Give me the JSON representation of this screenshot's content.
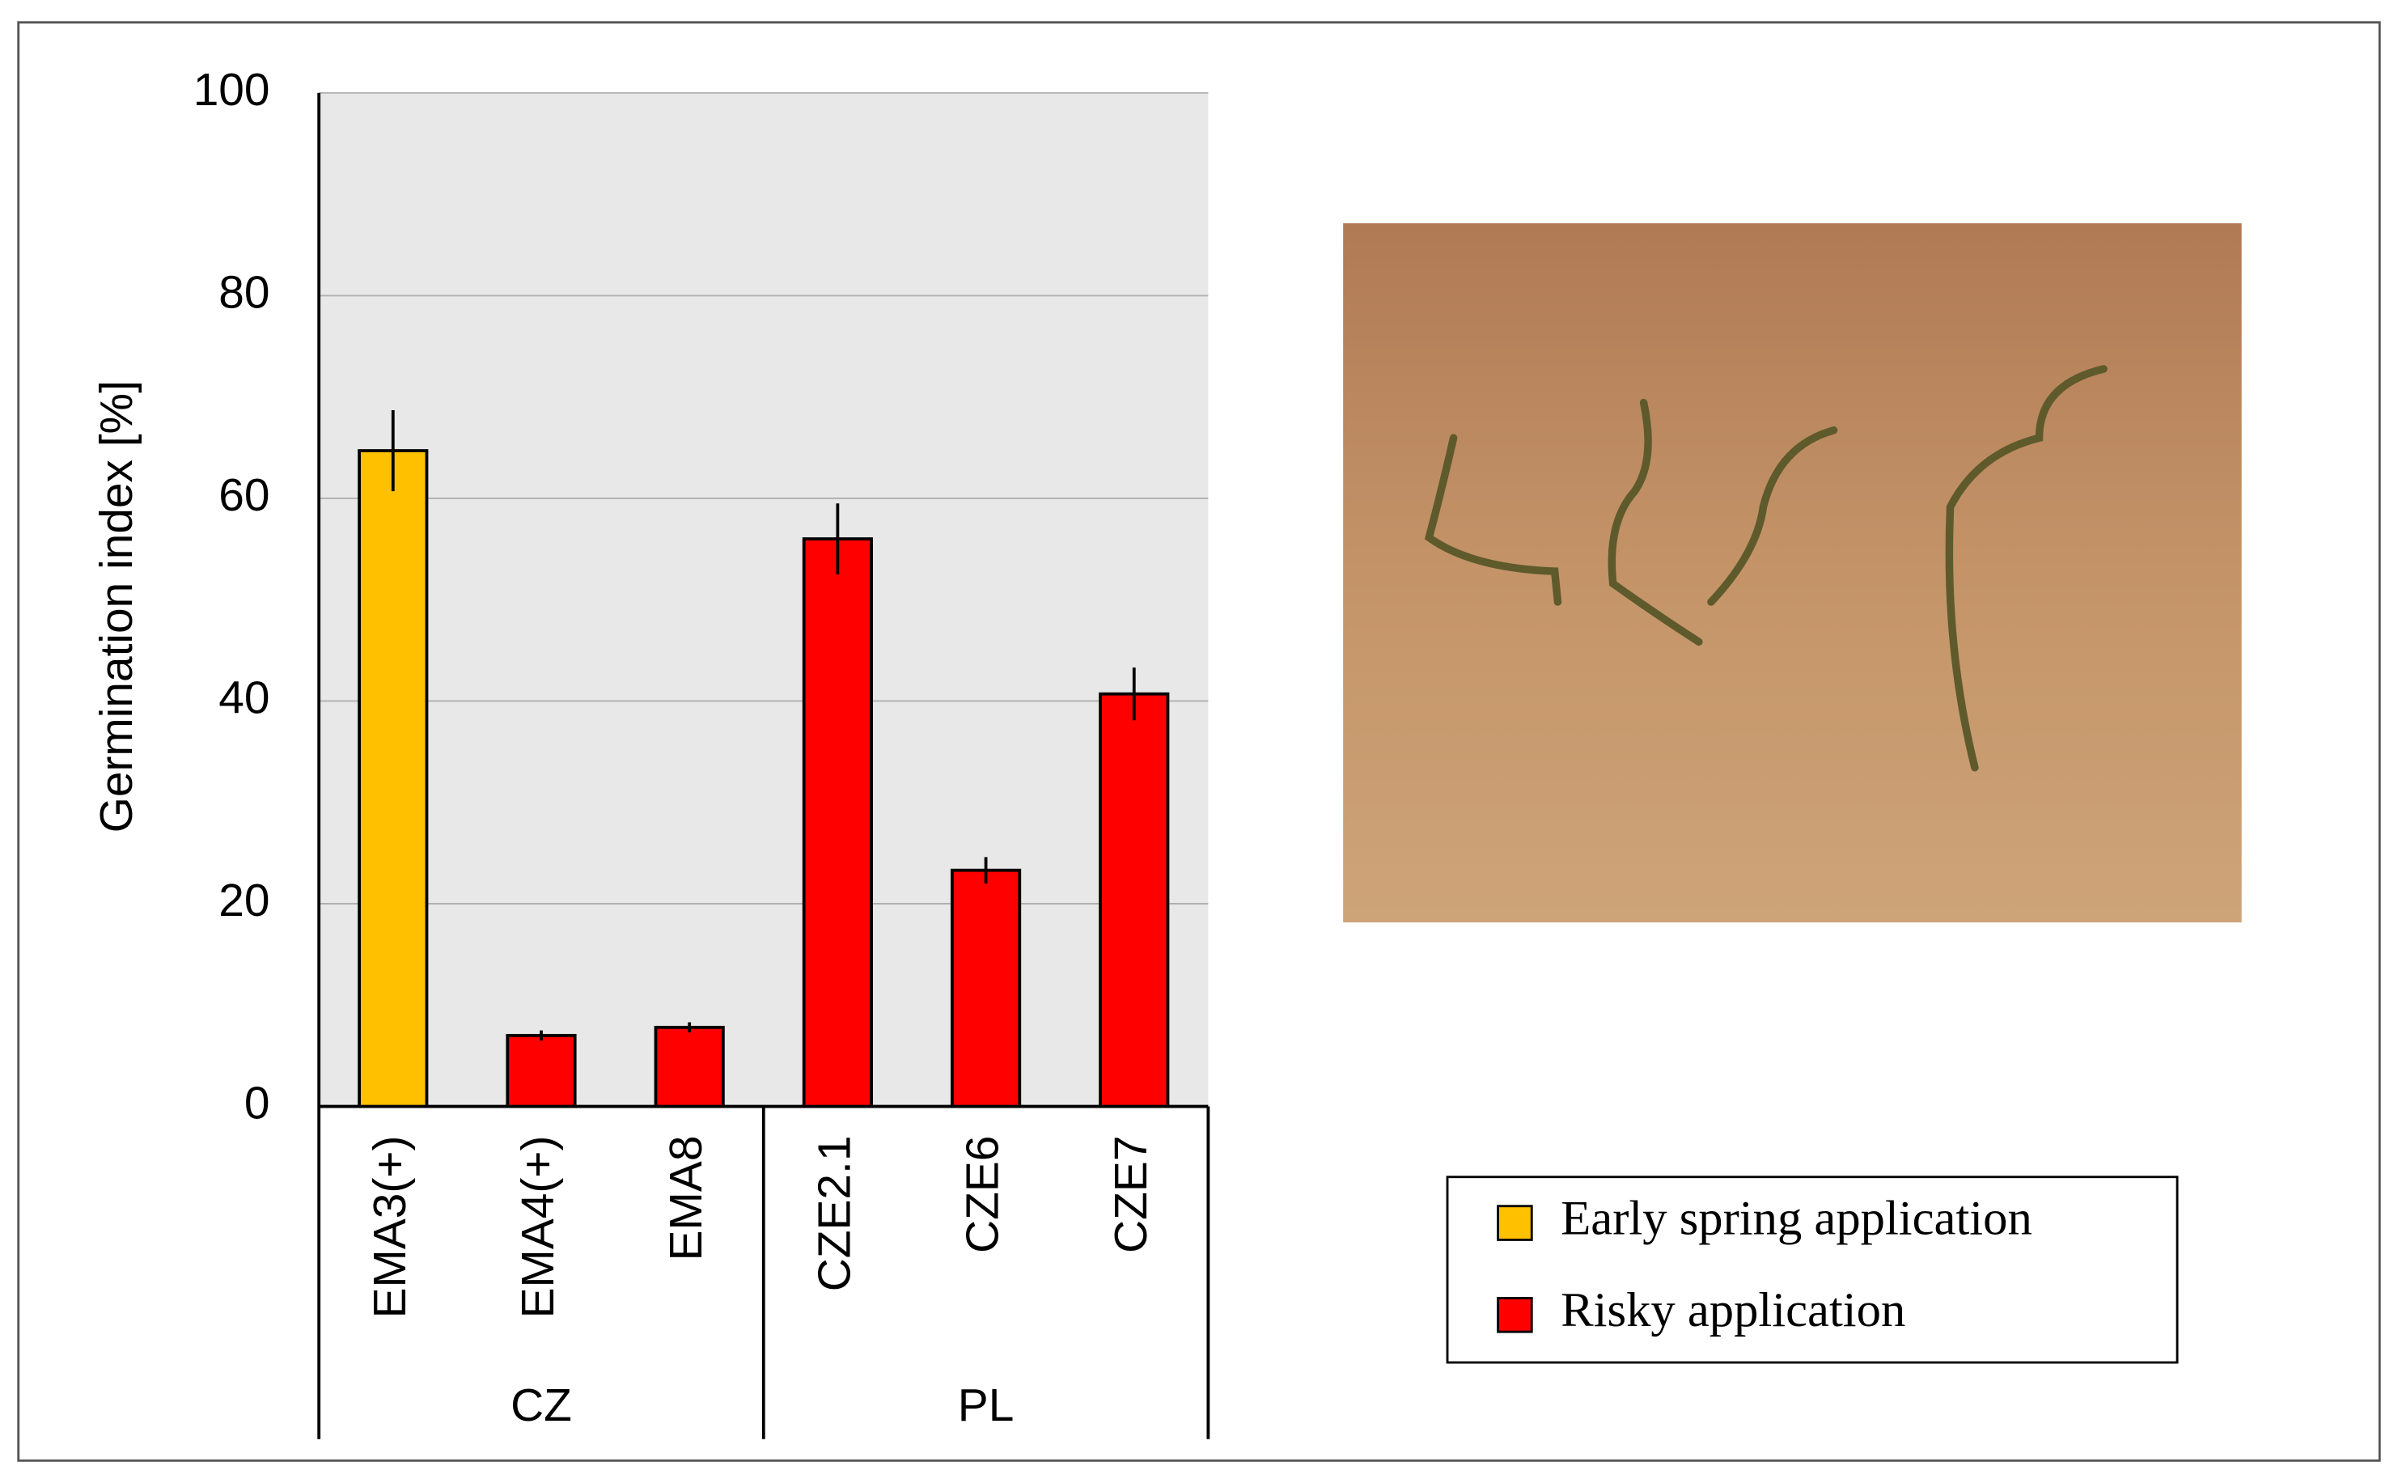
{
  "chart_data": {
    "type": "bar",
    "y_label": "Germination index [%]",
    "categories": [
      "EMA3(+)",
      "EMA4(+)",
      "EMA8",
      "CZE2.1",
      "CZE6",
      "CZE7"
    ],
    "groups": [
      {
        "name": "CZ",
        "size": 3
      },
      {
        "name": "PL",
        "size": 3
      }
    ],
    "series": [
      {
        "name": "Early spring application",
        "color": "#ffc000",
        "values": [
          64.7,
          null,
          null,
          null,
          null,
          null
        ],
        "errors": [
          4,
          null,
          null,
          null,
          null,
          null
        ]
      },
      {
        "name": "Risky application",
        "color": "#ff0000",
        "values": [
          null,
          7,
          7.8,
          56,
          23.3,
          40.7
        ],
        "errors": [
          null,
          0.5,
          0.5,
          3.5,
          1.3,
          2.6
        ]
      }
    ],
    "ylim": [
      0,
      100
    ],
    "yticks": [
      0,
      20,
      40,
      60,
      80,
      100
    ],
    "grid": true
  }
}
